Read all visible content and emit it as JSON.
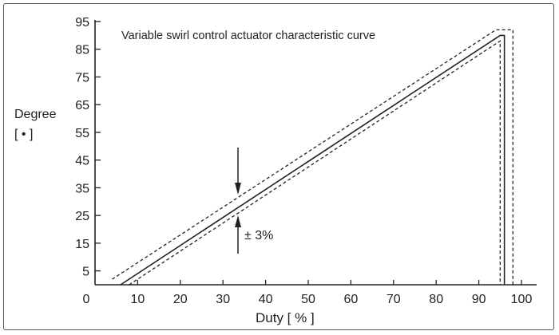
{
  "chart_data": {
    "type": "line",
    "title": "Variable swirl control actuator characteristic curve",
    "xlabel": "Duty [ % ]",
    "ylabel_line1": "Degree",
    "ylabel_line2": "[ • ]",
    "xlim": [
      0,
      100
    ],
    "ylim": [
      0,
      95
    ],
    "x_ticks": [
      0,
      10,
      20,
      30,
      40,
      50,
      60,
      70,
      80,
      90,
      100
    ],
    "y_ticks": [
      5,
      15,
      25,
      35,
      45,
      55,
      65,
      75,
      85,
      95
    ],
    "grid": false,
    "annotation": "± 3%",
    "series": [
      {
        "style": "solid",
        "x": [
          6,
          95,
          95,
          96,
          96
        ],
        "y": [
          0,
          90,
          90,
          90,
          0
        ]
      },
      {
        "style": "dashed",
        "x": [
          4,
          94,
          98,
          98
        ],
        "y": [
          2,
          92,
          92,
          0
        ]
      },
      {
        "style": "dashed",
        "x": [
          8,
          95,
          95
        ],
        "y": [
          0,
          88,
          0
        ]
      }
    ]
  }
}
